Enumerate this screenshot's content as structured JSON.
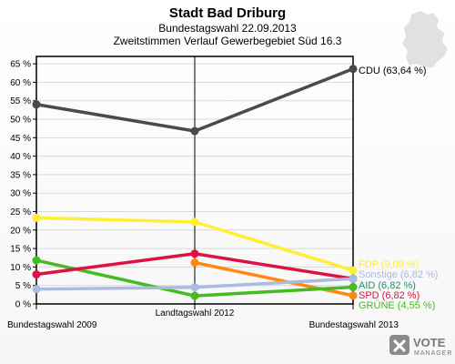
{
  "header": {
    "title": "Stadt Bad Driburg",
    "subtitle_1": "Bundestagswahl 22.09.2013",
    "subtitle_2": "Zweitstimmen Verlauf Gewerbegebiet Süd 16.3"
  },
  "logo": {
    "line_1": "VOTE",
    "line_2": "MANAGER"
  },
  "colors": {
    "background": "#ffffff",
    "axis": "#000000",
    "grid": "#d8d8d8",
    "map_shape": "#dcdcdc"
  },
  "chart_data": {
    "type": "line",
    "x": [
      "Bundestagswahl 2009",
      "Landtagswahl 2012",
      "Bundestagswahl 2013"
    ],
    "ylim": [
      0,
      67
    ],
    "yticks": [
      "0 %",
      "5 %",
      "10 %",
      "15 %",
      "20 %",
      "25 %",
      "30 %",
      "35 %",
      "40 %",
      "45 %",
      "50 %",
      "55 %",
      "60 %",
      "65 %"
    ],
    "grid": true,
    "series": [
      {
        "key": "cdu",
        "color": "#4a4a4a",
        "values": [
          54.0,
          46.8,
          63.64
        ],
        "end_label": "CDU (63,64 %)",
        "label_color": "#000000"
      },
      {
        "key": "fdp",
        "color": "#ffee33",
        "values": [
          23.3,
          22.2,
          9.09
        ],
        "end_label": "FDP (9,09 %)",
        "label_color": "#ffee33"
      },
      {
        "key": "sonstige",
        "color": "#aabbe0",
        "values": [
          4.0,
          4.5,
          6.82
        ],
        "end_label": "Sonstige (6,82 %)",
        "label_color": "#aabbe0"
      },
      {
        "key": "aid",
        "color": "#2a8a6a",
        "values": [
          null,
          null,
          6.82
        ],
        "end_label": "AID (6,82 %)",
        "label_color": "#2a8a6a"
      },
      {
        "key": "spd",
        "color": "#dd1144",
        "values": [
          8.0,
          13.6,
          6.82
        ],
        "end_label": "SPD (6,82 %)",
        "label_color": "#dd1144"
      },
      {
        "key": "gruene",
        "color": "#44bb22",
        "values": [
          11.8,
          2.2,
          4.55
        ],
        "end_label": "GRÜNE (4,55 %)",
        "label_color": "#44bb22"
      },
      {
        "key": "linke",
        "color": "#ff8811",
        "values": [
          null,
          11.2,
          2.27
        ],
        "end_label": "",
        "label_color": "#ff8811"
      }
    ]
  }
}
